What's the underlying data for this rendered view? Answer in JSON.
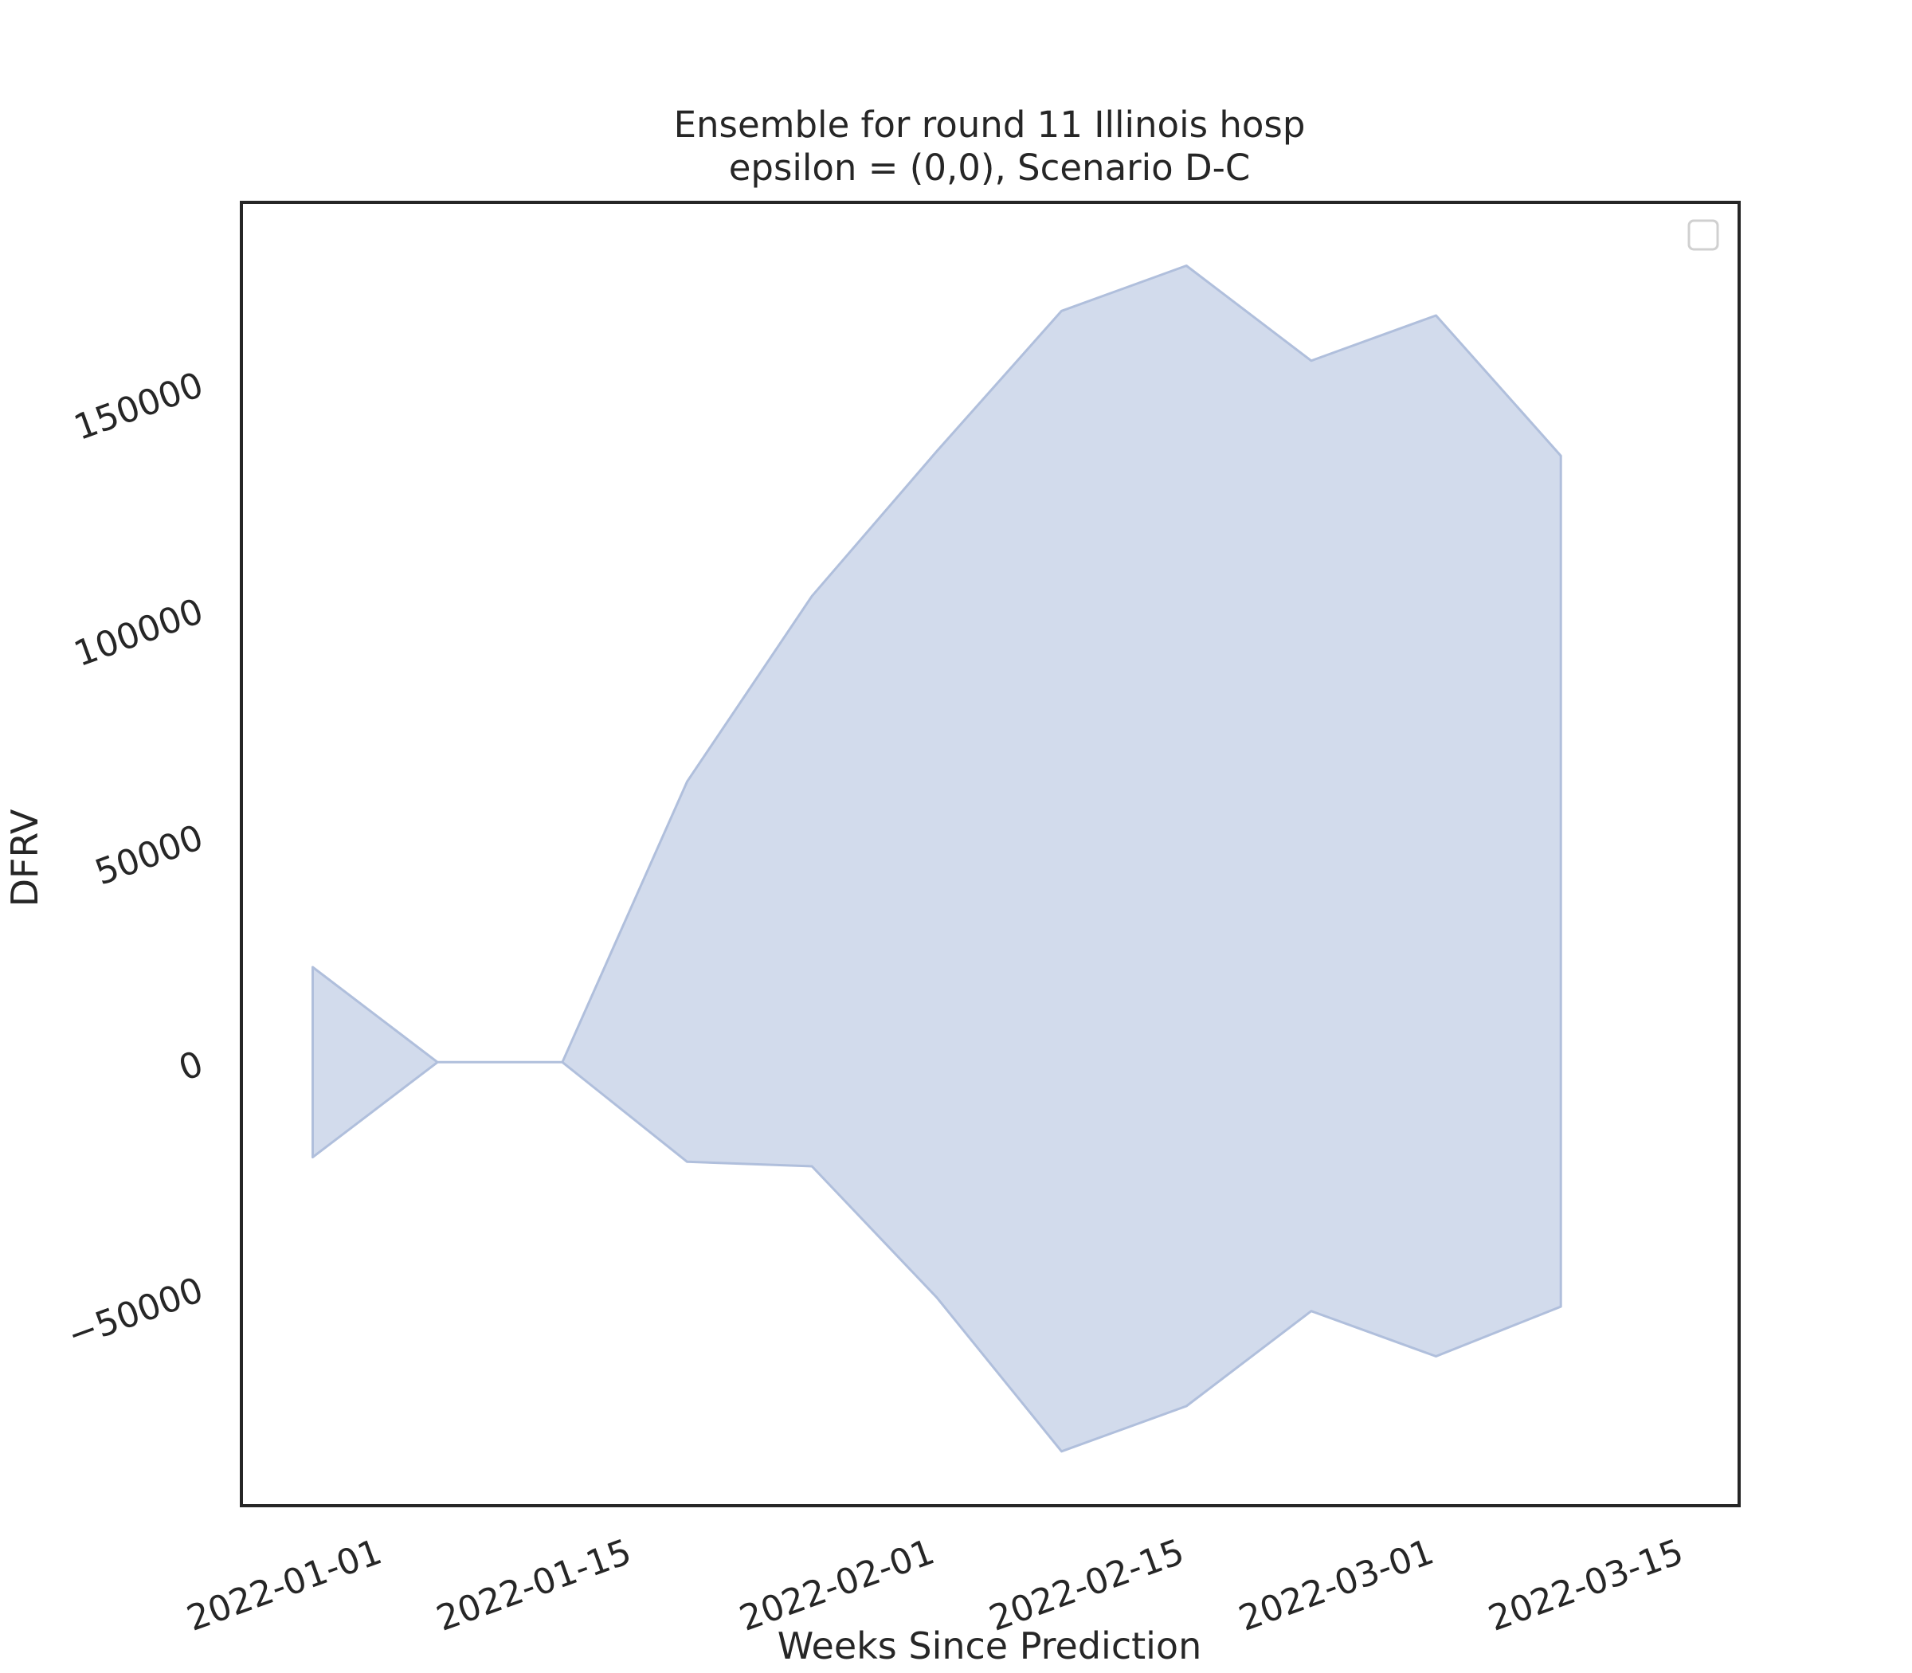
{
  "chart_data": {
    "type": "area",
    "title": "Ensemble for round 11 Illinois hosp",
    "subtitle": "epsilon = (0,0), Scenario D-C",
    "xlabel": "Weeks Since Prediction",
    "ylabel": "DFRV",
    "x_ticks": [
      "2022-01-01",
      "2022-01-15",
      "2022-02-01",
      "2022-02-15",
      "2022-03-01",
      "2022-03-15"
    ],
    "y_ticks": [
      -50000,
      0,
      50000,
      100000,
      150000
    ],
    "y_tick_labels": [
      "−50000",
      "0",
      "50000",
      "100000",
      "150000"
    ],
    "ylim": [
      -98000,
      190000
    ],
    "xlim": [
      "2021-12-24",
      "2022-03-18"
    ],
    "grid": false,
    "legend": {
      "placement": "top-right",
      "entries": []
    },
    "fill_color": "#b6c5e0",
    "edge_color": "#b0bfdc",
    "series": [
      {
        "x": [
          "2021-12-28",
          "2022-01-04",
          "2022-01-11",
          "2022-01-18",
          "2022-01-25",
          "2022-02-01",
          "2022-02-08",
          "2022-02-15",
          "2022-02-22",
          "2022-03-01",
          "2022-03-08"
        ],
        "upper": [
          21000,
          0,
          0,
          62000,
          103000,
          135000,
          166000,
          176000,
          155000,
          165000,
          134000
        ],
        "lower": [
          -21000,
          0,
          0,
          -22000,
          -23000,
          -52000,
          -86000,
          -76000,
          -55000,
          -65000,
          -54000
        ]
      }
    ]
  }
}
